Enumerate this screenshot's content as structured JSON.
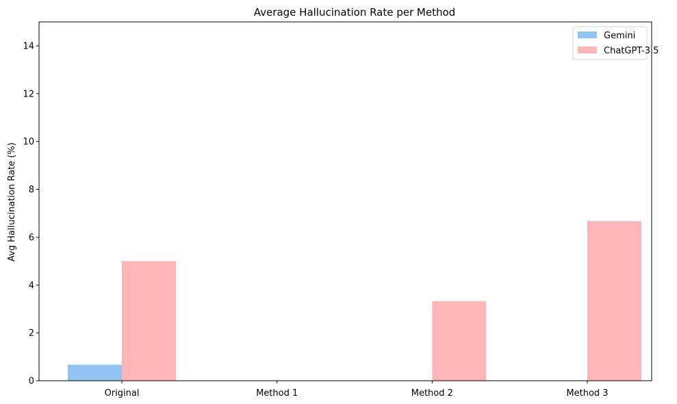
{
  "chart_data": {
    "type": "bar",
    "title": "Average Hallucination Rate per Method",
    "xlabel": "",
    "ylabel": "Avg Hallucination Rate (%)",
    "categories": [
      "Original",
      "Method 1",
      "Method 2",
      "Method 3"
    ],
    "series": [
      {
        "name": "Gemini",
        "values": [
          0.67,
          0,
          0,
          0
        ],
        "color": "#92c3f3"
      },
      {
        "name": "ChatGPT-3.5",
        "values": [
          5.0,
          0,
          3.33,
          6.67
        ],
        "color": "#ffb6b8"
      }
    ],
    "ylim": [
      0,
      15
    ],
    "yticks": [
      0,
      2,
      4,
      6,
      8,
      10,
      12,
      14
    ],
    "grid": false,
    "legend_position": "top-right"
  }
}
